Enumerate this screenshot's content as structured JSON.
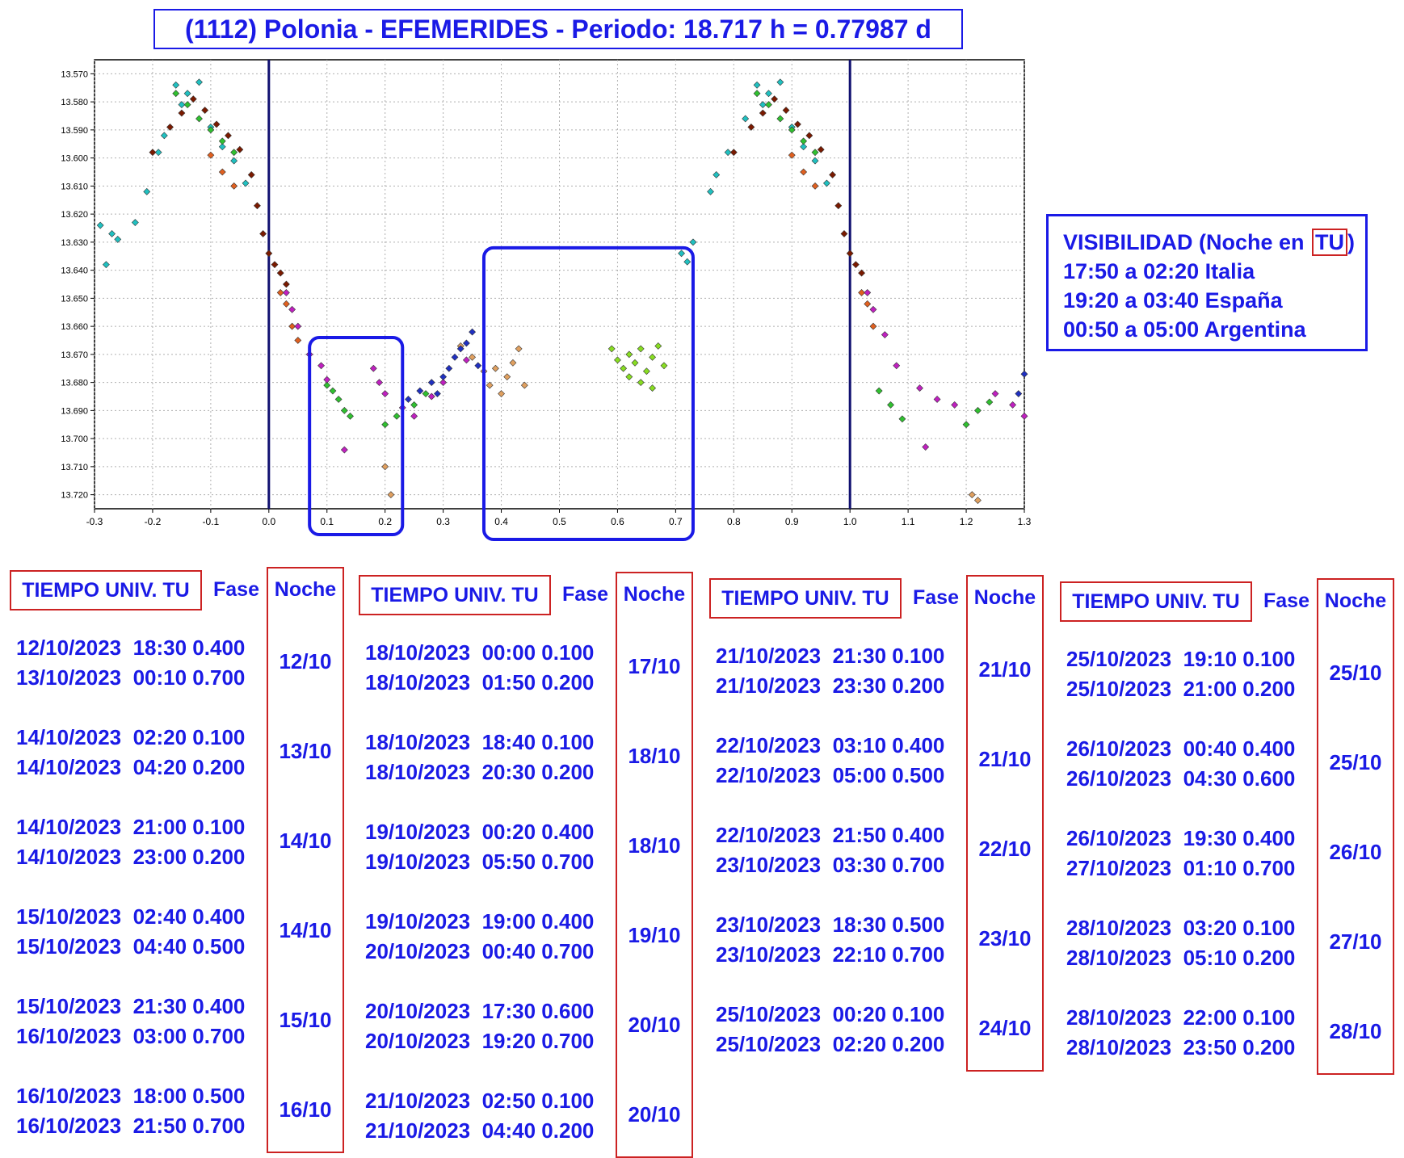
{
  "title": "(1112) Polonia - EFEMERIDES - Periodo: 18.717 h = 0.77987 d",
  "visibility": {
    "heading_pre": "VISIBILIDAD (Noche en ",
    "heading_tu": "TU",
    "heading_post": ")",
    "lines": [
      "17:50 a 02:20 Italia",
      "19:20 a 03:40 España",
      "00:50 a 05:00 Argentina"
    ]
  },
  "chart_data": {
    "type": "scatter",
    "xlim": [
      -0.3,
      1.3
    ],
    "ylim": [
      13.565,
      13.725
    ],
    "y_inverted": true,
    "grid": true,
    "x_ticks": [
      "-0.3",
      "-0.2",
      "-0.1",
      "0.0",
      "0.1",
      "0.2",
      "0.3",
      "0.4",
      "0.5",
      "0.6",
      "0.7",
      "0.8",
      "0.9",
      "1.0",
      "1.1",
      "1.2",
      "1.3"
    ],
    "y_ticks": [
      "13.570",
      "13.580",
      "13.590",
      "13.600",
      "13.610",
      "13.620",
      "13.630",
      "13.640",
      "13.650",
      "13.660",
      "13.670",
      "13.680",
      "13.690",
      "13.700",
      "13.710",
      "13.720"
    ],
    "vertical_lines": [
      0.0,
      1.0
    ],
    "highlight_ranges": [
      [
        0.07,
        0.23
      ],
      [
        0.37,
        0.73
      ]
    ],
    "series": [
      {
        "color": "#20c0c0",
        "points": [
          [
            -0.29,
            13.624
          ],
          [
            -0.28,
            13.638
          ],
          [
            -0.27,
            13.627
          ],
          [
            -0.26,
            13.629
          ],
          [
            -0.23,
            13.623
          ],
          [
            -0.21,
            13.612
          ],
          [
            -0.19,
            13.598
          ],
          [
            -0.18,
            13.592
          ],
          [
            -0.16,
            13.574
          ],
          [
            -0.15,
            13.581
          ],
          [
            -0.14,
            13.577
          ],
          [
            -0.12,
            13.573
          ],
          [
            -0.1,
            13.589
          ],
          [
            -0.08,
            13.596
          ],
          [
            -0.06,
            13.601
          ],
          [
            -0.04,
            13.609
          ],
          [
            0.71,
            13.634
          ],
          [
            0.72,
            13.637
          ],
          [
            0.73,
            13.63
          ],
          [
            0.76,
            13.612
          ],
          [
            0.77,
            13.606
          ],
          [
            0.79,
            13.598
          ],
          [
            0.82,
            13.586
          ],
          [
            0.84,
            13.574
          ],
          [
            0.85,
            13.581
          ],
          [
            0.86,
            13.577
          ],
          [
            0.88,
            13.573
          ],
          [
            0.9,
            13.589
          ],
          [
            0.92,
            13.596
          ],
          [
            0.94,
            13.601
          ],
          [
            0.96,
            13.609
          ]
        ]
      },
      {
        "color": "#7a1a00",
        "points": [
          [
            -0.2,
            13.598
          ],
          [
            -0.17,
            13.589
          ],
          [
            -0.15,
            13.584
          ],
          [
            -0.13,
            13.579
          ],
          [
            -0.11,
            13.583
          ],
          [
            -0.09,
            13.588
          ],
          [
            -0.07,
            13.592
          ],
          [
            -0.05,
            13.597
          ],
          [
            -0.03,
            13.606
          ],
          [
            -0.02,
            13.617
          ],
          [
            -0.01,
            13.627
          ],
          [
            0.0,
            13.634
          ],
          [
            0.01,
            13.638
          ],
          [
            0.02,
            13.641
          ],
          [
            0.03,
            13.645
          ],
          [
            0.8,
            13.598
          ],
          [
            0.83,
            13.589
          ],
          [
            0.85,
            13.584
          ],
          [
            0.87,
            13.579
          ],
          [
            0.89,
            13.583
          ],
          [
            0.91,
            13.588
          ],
          [
            0.93,
            13.592
          ],
          [
            0.95,
            13.597
          ],
          [
            0.97,
            13.606
          ],
          [
            0.98,
            13.617
          ],
          [
            0.99,
            13.627
          ],
          [
            1.0,
            13.634
          ],
          [
            1.01,
            13.638
          ],
          [
            1.02,
            13.641
          ]
        ]
      },
      {
        "color": "#30c030",
        "points": [
          [
            -0.16,
            13.577
          ],
          [
            -0.14,
            13.581
          ],
          [
            -0.12,
            13.586
          ],
          [
            -0.1,
            13.59
          ],
          [
            -0.08,
            13.594
          ],
          [
            -0.06,
            13.598
          ],
          [
            0.1,
            13.681
          ],
          [
            0.11,
            13.683
          ],
          [
            0.12,
            13.686
          ],
          [
            0.13,
            13.69
          ],
          [
            0.14,
            13.692
          ],
          [
            0.2,
            13.695
          ],
          [
            0.22,
            13.692
          ],
          [
            0.25,
            13.688
          ],
          [
            0.27,
            13.684
          ],
          [
            0.84,
            13.577
          ],
          [
            0.86,
            13.581
          ],
          [
            0.88,
            13.586
          ],
          [
            0.9,
            13.59
          ],
          [
            0.92,
            13.594
          ],
          [
            0.94,
            13.598
          ],
          [
            1.05,
            13.683
          ],
          [
            1.07,
            13.688
          ],
          [
            1.09,
            13.693
          ],
          [
            1.2,
            13.695
          ],
          [
            1.22,
            13.69
          ],
          [
            1.24,
            13.687
          ]
        ]
      },
      {
        "color": "#88dd22",
        "points": [
          [
            0.59,
            13.668
          ],
          [
            0.6,
            13.672
          ],
          [
            0.61,
            13.675
          ],
          [
            0.62,
            13.67
          ],
          [
            0.62,
            13.678
          ],
          [
            0.63,
            13.673
          ],
          [
            0.64,
            13.68
          ],
          [
            0.64,
            13.668
          ],
          [
            0.65,
            13.676
          ],
          [
            0.66,
            13.671
          ],
          [
            0.66,
            13.682
          ],
          [
            0.67,
            13.667
          ],
          [
            0.68,
            13.674
          ]
        ]
      },
      {
        "color": "#e0a060",
        "points": [
          [
            0.37,
            13.676
          ],
          [
            0.38,
            13.681
          ],
          [
            0.39,
            13.675
          ],
          [
            0.4,
            13.684
          ],
          [
            0.41,
            13.678
          ],
          [
            0.42,
            13.673
          ],
          [
            0.43,
            13.668
          ],
          [
            0.44,
            13.681
          ],
          [
            0.2,
            13.71
          ],
          [
            0.21,
            13.72
          ],
          [
            1.21,
            13.72
          ],
          [
            1.22,
            13.722
          ],
          [
            0.33,
            13.667
          ],
          [
            0.35,
            13.671
          ]
        ]
      },
      {
        "color": "#e06020",
        "points": [
          [
            -0.1,
            13.599
          ],
          [
            -0.08,
            13.605
          ],
          [
            -0.06,
            13.61
          ],
          [
            0.02,
            13.648
          ],
          [
            0.03,
            13.652
          ],
          [
            0.04,
            13.66
          ],
          [
            0.05,
            13.665
          ],
          [
            0.9,
            13.599
          ],
          [
            0.92,
            13.605
          ],
          [
            0.94,
            13.61
          ],
          [
            1.02,
            13.648
          ],
          [
            1.03,
            13.652
          ],
          [
            1.04,
            13.66
          ]
        ]
      },
      {
        "color": "#c020c0",
        "points": [
          [
            0.03,
            13.648
          ],
          [
            0.04,
            13.654
          ],
          [
            0.05,
            13.66
          ],
          [
            0.07,
            13.67
          ],
          [
            0.09,
            13.674
          ],
          [
            0.1,
            13.679
          ],
          [
            0.18,
            13.675
          ],
          [
            0.19,
            13.68
          ],
          [
            0.2,
            13.684
          ],
          [
            0.23,
            13.689
          ],
          [
            0.25,
            13.692
          ],
          [
            0.28,
            13.685
          ],
          [
            0.3,
            13.68
          ],
          [
            0.34,
            13.672
          ],
          [
            1.03,
            13.648
          ],
          [
            1.04,
            13.654
          ],
          [
            1.06,
            13.663
          ],
          [
            1.08,
            13.674
          ],
          [
            1.12,
            13.682
          ],
          [
            1.15,
            13.686
          ],
          [
            1.18,
            13.688
          ],
          [
            1.25,
            13.684
          ],
          [
            1.28,
            13.688
          ],
          [
            1.3,
            13.692
          ],
          [
            0.13,
            13.704
          ],
          [
            1.13,
            13.703
          ]
        ]
      },
      {
        "color": "#2030c0",
        "points": [
          [
            0.24,
            13.686
          ],
          [
            0.26,
            13.683
          ],
          [
            0.28,
            13.68
          ],
          [
            0.29,
            13.684
          ],
          [
            0.3,
            13.678
          ],
          [
            0.31,
            13.675
          ],
          [
            0.32,
            13.671
          ],
          [
            0.33,
            13.668
          ],
          [
            0.34,
            13.666
          ],
          [
            0.35,
            13.662
          ],
          [
            0.36,
            13.674
          ],
          [
            1.29,
            13.684
          ],
          [
            1.3,
            13.677
          ]
        ]
      }
    ]
  },
  "tables": [
    {
      "header": "TIEMPO UNIV. TU",
      "fase_label": "Fase",
      "noche_label": "Noche",
      "rows": [
        {
          "line1": "12/10/2023  18:30 0.400",
          "line2": "13/10/2023  00:10 0.700",
          "night": "12/10"
        },
        {
          "line1": "14/10/2023  02:20 0.100",
          "line2": "14/10/2023  04:20 0.200",
          "night": "13/10"
        },
        {
          "line1": "14/10/2023  21:00 0.100",
          "line2": "14/10/2023  23:00 0.200",
          "night": "14/10"
        },
        {
          "line1": "15/10/2023  02:40 0.400",
          "line2": "15/10/2023  04:40 0.500",
          "night": "14/10"
        },
        {
          "line1": "15/10/2023  21:30 0.400",
          "line2": "16/10/2023  03:00 0.700",
          "night": "15/10"
        },
        {
          "line1": "16/10/2023  18:00 0.500",
          "line2": "16/10/2023  21:50 0.700",
          "night": "16/10"
        }
      ]
    },
    {
      "header": "TIEMPO UNIV. TU",
      "fase_label": "Fase",
      "noche_label": "Noche",
      "rows": [
        {
          "line1": "18/10/2023  00:00 0.100",
          "line2": "18/10/2023  01:50 0.200",
          "night": "17/10"
        },
        {
          "line1": "18/10/2023  18:40 0.100",
          "line2": "18/10/2023  20:30 0.200",
          "night": "18/10"
        },
        {
          "line1": "19/10/2023  00:20 0.400",
          "line2": "19/10/2023  05:50 0.700",
          "night": "18/10"
        },
        {
          "line1": "19/10/2023  19:00 0.400",
          "line2": "20/10/2023  00:40 0.700",
          "night": "19/10"
        },
        {
          "line1": "20/10/2023  17:30 0.600",
          "line2": "20/10/2023  19:20 0.700",
          "night": "20/10"
        },
        {
          "line1": "21/10/2023  02:50 0.100",
          "line2": "21/10/2023  04:40 0.200",
          "night": "20/10"
        }
      ]
    },
    {
      "header": "TIEMPO UNIV. TU",
      "fase_label": "Fase",
      "noche_label": "Noche",
      "rows": [
        {
          "line1": "21/10/2023  21:30 0.100",
          "line2": "21/10/2023  23:30 0.200",
          "night": "21/10"
        },
        {
          "line1": "22/10/2023  03:10 0.400",
          "line2": "22/10/2023  05:00 0.500",
          "night": "21/10"
        },
        {
          "line1": "22/10/2023  21:50 0.400",
          "line2": "23/10/2023  03:30 0.700",
          "night": "22/10"
        },
        {
          "line1": "23/10/2023  18:30 0.500",
          "line2": "23/10/2023  22:10 0.700",
          "night": "23/10"
        },
        {
          "line1": "25/10/2023  00:20 0.100",
          "line2": "25/10/2023  02:20 0.200",
          "night": "24/10"
        }
      ]
    },
    {
      "header": "TIEMPO UNIV. TU",
      "fase_label": "Fase",
      "noche_label": "Noche",
      "rows": [
        {
          "line1": "25/10/2023  19:10 0.100",
          "line2": "25/10/2023  21:00 0.200",
          "night": "25/10"
        },
        {
          "line1": "26/10/2023  00:40 0.400",
          "line2": "26/10/2023  04:30 0.600",
          "night": "25/10"
        },
        {
          "line1": "26/10/2023  19:30 0.400",
          "line2": "27/10/2023  01:10 0.700",
          "night": "26/10"
        },
        {
          "line1": "28/10/2023  03:20 0.100",
          "line2": "28/10/2023  05:10 0.200",
          "night": "27/10"
        },
        {
          "line1": "28/10/2023  22:00 0.100",
          "line2": "28/10/2023  23:50 0.200",
          "night": "28/10"
        }
      ]
    }
  ]
}
